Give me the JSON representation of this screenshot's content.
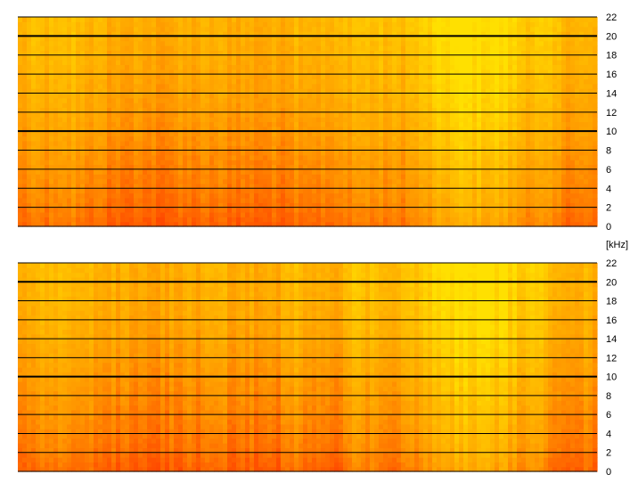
{
  "unit_label": "[kHz]",
  "colors": {
    "hot": "#ff3300",
    "mid": "#ff9900",
    "cool": "#ffe000",
    "grid": "#000000"
  },
  "chart_data": [
    {
      "type": "heatmap",
      "name": "spectrogram-top",
      "y_unit": "kHz",
      "ylim": [
        0,
        22
      ],
      "yticks": [
        0,
        2,
        4,
        6,
        8,
        10,
        12,
        14,
        16,
        18,
        20,
        22
      ],
      "yticklabels": [
        "0",
        "2",
        "4",
        "6",
        "8",
        "10",
        "12",
        "14",
        "16",
        "18",
        "20",
        "22"
      ],
      "major_grid": [
        10,
        20
      ],
      "time_brightness_profile": [
        0.45,
        0.55,
        0.5,
        0.6,
        0.48,
        0.42,
        0.4,
        0.38,
        0.4,
        0.42,
        0.44,
        0.45,
        0.43,
        0.4,
        0.42,
        0.55,
        0.5,
        0.45,
        0.62,
        0.58,
        0.55,
        0.6,
        0.7,
        0.85,
        0.9,
        0.88,
        0.85,
        0.7,
        0.65,
        0.55,
        0.5,
        0.45
      ],
      "freq_heat_profile": [
        1.0,
        0.85,
        0.75,
        0.68,
        0.6,
        0.52,
        0.45,
        0.38,
        0.33,
        0.28,
        0.24,
        0.2
      ]
    },
    {
      "type": "heatmap",
      "name": "spectrogram-bottom",
      "y_unit": "kHz",
      "ylim": [
        0,
        22
      ],
      "yticks": [
        0,
        2,
        4,
        6,
        8,
        10,
        12,
        14,
        16,
        18,
        20,
        22
      ],
      "yticklabels": [
        "0",
        "2",
        "4",
        "6",
        "8",
        "10",
        "12",
        "14",
        "16",
        "18",
        "20",
        "22"
      ],
      "major_grid": [
        10,
        20
      ],
      "time_brightness_profile": [
        0.45,
        0.55,
        0.5,
        0.6,
        0.48,
        0.42,
        0.4,
        0.38,
        0.4,
        0.42,
        0.44,
        0.45,
        0.43,
        0.4,
        0.42,
        0.55,
        0.5,
        0.45,
        0.62,
        0.58,
        0.55,
        0.6,
        0.7,
        0.85,
        0.9,
        0.88,
        0.85,
        0.7,
        0.65,
        0.55,
        0.5,
        0.45
      ],
      "freq_heat_profile": [
        1.0,
        0.85,
        0.75,
        0.68,
        0.6,
        0.52,
        0.45,
        0.38,
        0.33,
        0.28,
        0.24,
        0.2
      ]
    }
  ]
}
